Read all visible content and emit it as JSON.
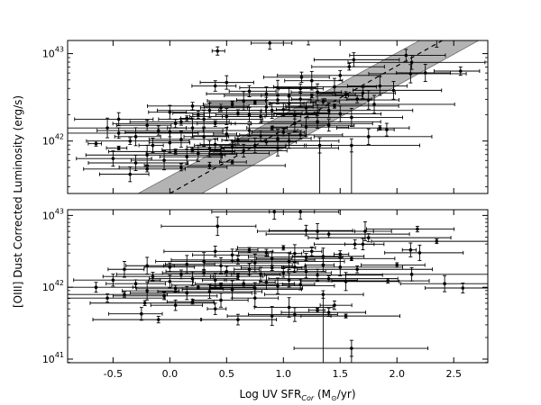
{
  "chart_data": [
    {
      "type": "scatter",
      "panel": "top",
      "xlim": [
        -0.9,
        2.8
      ],
      "ylog_range": [
        41.4,
        43.15
      ],
      "yticks": [
        {
          "base": "10",
          "exp": "42",
          "value": 42
        },
        {
          "base": "10",
          "exp": "43",
          "value": 43
        }
      ],
      "band": {
        "center": [
          [
            0.0,
            41.4
          ],
          [
            2.4,
            43.15
          ]
        ],
        "lower": [
          [
            0.28,
            41.4
          ],
          [
            2.72,
            43.15
          ]
        ],
        "upper": [
          [
            -0.28,
            41.4
          ],
          [
            2.2,
            43.15
          ]
        ]
      },
      "points": [
        [
          0.42,
          43.03
        ],
        [
          0.88,
          43.12
        ],
        [
          1.22,
          43.19
        ],
        [
          1.62,
          42.93
        ],
        [
          2.12,
          43.26
        ],
        [
          2.32,
          43.27
        ],
        [
          2.35,
          43.18
        ],
        [
          2.08,
          42.98
        ],
        [
          2.13,
          42.9
        ],
        [
          2.12,
          42.77
        ],
        [
          2.25,
          42.78
        ],
        [
          2.56,
          42.8
        ],
        [
          1.85,
          42.63
        ],
        [
          1.97,
          42.58
        ],
        [
          1.91,
          42.13
        ],
        [
          1.58,
          42.85
        ],
        [
          1.5,
          42.75
        ],
        [
          1.25,
          42.69
        ],
        [
          1.16,
          42.73
        ],
        [
          0.4,
          42.63
        ],
        [
          0.5,
          42.67
        ],
        [
          0.7,
          42.57
        ],
        [
          0.85,
          42.54
        ],
        [
          0.95,
          42.61
        ],
        [
          1.05,
          42.52
        ],
        [
          1.15,
          42.6
        ],
        [
          1.3,
          42.56
        ],
        [
          1.45,
          42.62
        ],
        [
          1.55,
          42.53
        ],
        [
          1.65,
          42.48
        ],
        [
          1.7,
          42.55
        ],
        [
          1.75,
          42.47
        ],
        [
          1.8,
          42.42
        ],
        [
          0.05,
          42.2
        ],
        [
          0.15,
          42.26
        ],
        [
          0.25,
          42.3
        ],
        [
          0.35,
          42.35
        ],
        [
          0.45,
          42.38
        ],
        [
          0.55,
          42.42
        ],
        [
          0.65,
          42.46
        ],
        [
          0.75,
          42.44
        ],
        [
          0.85,
          42.39
        ],
        [
          0.95,
          42.47
        ],
        [
          1.05,
          42.43
        ],
        [
          1.15,
          42.48
        ],
        [
          1.25,
          42.52
        ],
        [
          1.35,
          42.45
        ],
        [
          1.45,
          42.4
        ],
        [
          -0.55,
          42.15
        ],
        [
          -0.45,
          42.09
        ],
        [
          -0.3,
          42.05
        ],
        [
          -0.2,
          42.18
        ],
        [
          -0.1,
          42.12
        ],
        [
          0.0,
          42.1
        ],
        [
          0.1,
          42.22
        ],
        [
          0.2,
          42.15
        ],
        [
          0.3,
          42.25
        ],
        [
          0.4,
          42.2
        ],
        [
          0.5,
          42.28
        ],
        [
          0.6,
          42.32
        ],
        [
          0.7,
          42.3
        ],
        [
          0.8,
          42.28
        ],
        [
          0.9,
          42.35
        ],
        [
          1.0,
          42.36
        ],
        [
          1.1,
          42.3
        ],
        [
          1.2,
          42.38
        ],
        [
          1.3,
          42.32
        ],
        [
          1.4,
          42.35
        ],
        [
          1.5,
          42.31
        ],
        [
          1.6,
          42.27
        ],
        [
          -0.65,
          41.97
        ],
        [
          -0.45,
          41.92
        ],
        [
          -0.35,
          42.0
        ],
        [
          -0.15,
          41.95
        ],
        [
          0.0,
          41.98
        ],
        [
          0.1,
          42.02
        ],
        [
          0.2,
          41.9
        ],
        [
          0.3,
          42.05
        ],
        [
          0.4,
          41.96
        ],
        [
          0.5,
          42.08
        ],
        [
          0.6,
          42.01
        ],
        [
          0.7,
          42.12
        ],
        [
          0.8,
          42.06
        ],
        [
          0.9,
          42.15
        ],
        [
          1.0,
          42.1
        ],
        [
          1.1,
          42.2
        ],
        [
          1.2,
          42.16
        ],
        [
          1.3,
          42.22
        ],
        [
          1.4,
          42.18
        ],
        [
          -0.5,
          41.8
        ],
        [
          -0.3,
          41.75
        ],
        [
          -0.2,
          41.84
        ],
        [
          -0.05,
          41.78
        ],
        [
          0.05,
          41.88
        ],
        [
          0.15,
          41.82
        ],
        [
          0.25,
          41.86
        ],
        [
          0.35,
          41.91
        ],
        [
          0.45,
          41.85
        ],
        [
          0.55,
          41.93
        ],
        [
          0.65,
          41.89
        ],
        [
          0.75,
          41.95
        ],
        [
          0.85,
          41.99
        ],
        [
          0.95,
          42.03
        ],
        [
          1.05,
          42.0
        ],
        [
          1.15,
          42.07
        ],
        [
          -0.2,
          41.68
        ],
        [
          -0.35,
          41.62
        ],
        [
          0.1,
          41.7
        ],
        [
          0.35,
          41.72
        ],
        [
          0.55,
          41.76
        ],
        [
          0.95,
          41.92
        ],
        [
          1.32,
          41.95
        ],
        [
          1.6,
          41.95
        ],
        [
          1.75,
          42.05
        ],
        [
          1.85,
          42.15
        ],
        [
          -0.45,
          42.25
        ],
        [
          0.0,
          42.33
        ],
        [
          0.2,
          42.4
        ]
      ]
    },
    {
      "type": "scatter",
      "panel": "bottom",
      "xlim": [
        -0.9,
        2.8
      ],
      "ylog_range": [
        40.95,
        43.08
      ],
      "yticks": [
        {
          "base": "10",
          "exp": "41",
          "value": 41
        },
        {
          "base": "10",
          "exp": "42",
          "value": 42
        },
        {
          "base": "10",
          "exp": "43",
          "value": 43
        }
      ],
      "xticks": [
        "-0.5",
        "0.0",
        "0.5",
        "1.0",
        "1.5",
        "2.0",
        "2.5"
      ],
      "xtick_values": [
        -0.5,
        0.0,
        0.5,
        1.0,
        1.5,
        2.0,
        2.5
      ],
      "points": [
        [
          0.92,
          43.05
        ],
        [
          1.15,
          43.05
        ],
        [
          0.42,
          42.85
        ],
        [
          1.2,
          42.79
        ],
        [
          1.3,
          42.78
        ],
        [
          1.4,
          42.74
        ],
        [
          2.18,
          42.81
        ],
        [
          2.35,
          42.64
        ],
        [
          1.72,
          42.78
        ],
        [
          1.75,
          42.69
        ],
        [
          1.7,
          42.6
        ],
        [
          1.63,
          42.6
        ],
        [
          2.0,
          42.31
        ],
        [
          2.12,
          42.52
        ],
        [
          2.2,
          42.48
        ],
        [
          2.58,
          41.99
        ],
        [
          2.42,
          42.05
        ],
        [
          2.13,
          42.18
        ],
        [
          1.92,
          42.09
        ],
        [
          0.4,
          42.5
        ],
        [
          0.55,
          42.45
        ],
        [
          0.7,
          42.52
        ],
        [
          0.85,
          42.48
        ],
        [
          1.0,
          42.55
        ],
        [
          1.1,
          42.47
        ],
        [
          1.25,
          42.5
        ],
        [
          1.35,
          42.43
        ],
        [
          1.5,
          42.46
        ],
        [
          1.6,
          42.4
        ],
        [
          -0.4,
          42.25
        ],
        [
          -0.2,
          42.3
        ],
        [
          0.0,
          42.28
        ],
        [
          0.15,
          42.32
        ],
        [
          0.3,
          42.36
        ],
        [
          0.45,
          42.3
        ],
        [
          0.6,
          42.38
        ],
        [
          0.75,
          42.34
        ],
        [
          0.9,
          42.4
        ],
        [
          1.05,
          42.36
        ],
        [
          1.2,
          42.42
        ],
        [
          1.35,
          42.31
        ],
        [
          1.5,
          42.28
        ],
        [
          1.65,
          42.25
        ],
        [
          -0.65,
          42.0
        ],
        [
          -0.5,
          42.1
        ],
        [
          -0.3,
          42.05
        ],
        [
          -0.15,
          42.15
        ],
        [
          0.0,
          42.08
        ],
        [
          0.1,
          42.18
        ],
        [
          0.2,
          42.12
        ],
        [
          0.3,
          42.2
        ],
        [
          0.4,
          42.1
        ],
        [
          0.5,
          42.22
        ],
        [
          0.6,
          42.15
        ],
        [
          0.7,
          42.25
        ],
        [
          0.8,
          42.18
        ],
        [
          0.9,
          42.27
        ],
        [
          1.0,
          42.2
        ],
        [
          1.1,
          42.28
        ],
        [
          1.2,
          42.22
        ],
        [
          1.3,
          42.17
        ],
        [
          1.4,
          42.12
        ],
        [
          1.55,
          42.08
        ],
        [
          -0.55,
          41.85
        ],
        [
          -0.4,
          41.9
        ],
        [
          -0.2,
          41.95
        ],
        [
          -0.05,
          41.88
        ],
        [
          0.05,
          41.98
        ],
        [
          0.15,
          41.92
        ],
        [
          0.25,
          42.0
        ],
        [
          0.35,
          41.94
        ],
        [
          0.45,
          42.03
        ],
        [
          0.55,
          41.97
        ],
        [
          0.65,
          42.05
        ],
        [
          0.75,
          41.99
        ],
        [
          0.85,
          42.07
        ],
        [
          0.95,
          42.02
        ],
        [
          1.05,
          42.1
        ],
        [
          1.15,
          42.04
        ],
        [
          -0.25,
          41.63
        ],
        [
          -0.22,
          41.78
        ],
        [
          0.05,
          41.75
        ],
        [
          0.2,
          41.8
        ],
        [
          0.45,
          41.82
        ],
        [
          0.6,
          41.55
        ],
        [
          0.9,
          41.6
        ],
        [
          1.05,
          41.72
        ],
        [
          1.1,
          41.62
        ],
        [
          1.3,
          41.68
        ],
        [
          1.35,
          41.9
        ],
        [
          1.4,
          41.65
        ],
        [
          1.45,
          41.75
        ],
        [
          1.55,
          41.6
        ],
        [
          1.6,
          41.15
        ],
        [
          -0.1,
          41.55
        ],
        [
          0.4,
          41.7
        ],
        [
          0.75,
          41.85
        ]
      ]
    }
  ],
  "xlabel": {
    "prefix": "Log UV SFR",
    "sub": "Cor",
    "mid": " (M",
    "sub2": "⊙",
    "suffix": "/yr)"
  },
  "ylabel": "[OIII] Dust Corrected Luminosity (erg/s)",
  "colors": {
    "points": "#000000",
    "band": "#b3b3b3",
    "band_edge": "#6f6f6f",
    "line": "#000000"
  }
}
